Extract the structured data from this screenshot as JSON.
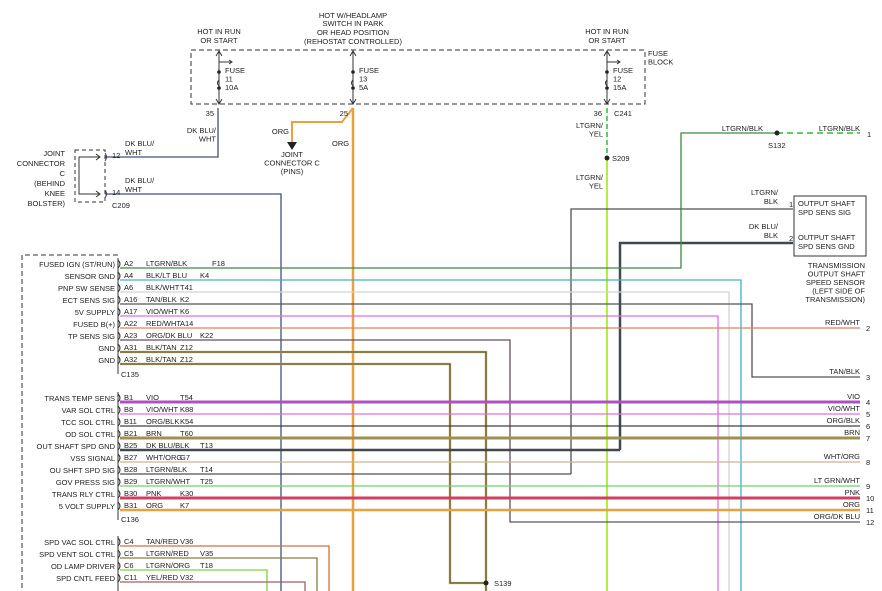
{
  "fuse_block": {
    "label": [
      "FUSE",
      "BLOCK"
    ],
    "connector": "C241",
    "fuses": [
      {
        "feed": [
          "HOT IN RUN",
          "OR START"
        ],
        "label": [
          "FUSE",
          "11",
          "10A"
        ],
        "cavity": "35"
      },
      {
        "feed": [
          "HOT W/HEADLAMP",
          "SWITCH IN PARK",
          "OR HEAD POSITION",
          "(REHOSTAT CONTROLLED)"
        ],
        "label": [
          "FUSE",
          "13",
          "5A"
        ],
        "cavity": "25"
      },
      {
        "feed": [
          "HOT IN RUN",
          "OR START"
        ],
        "label": [
          "FUSE",
          "12",
          "15A"
        ],
        "cavity": "36"
      }
    ]
  },
  "wire_labels": {
    "dkblu_wht_fuse": [
      "DK BLU/",
      "WHT"
    ],
    "org_branch": "ORG",
    "org_main": "ORG",
    "ltgrn_yel_upper": [
      "LTGRN/",
      "YEL"
    ],
    "ltgrn_yel_lower": [
      "LTGRN/",
      "YEL"
    ],
    "s209": "S209",
    "s132": "S132",
    "s139": "S139",
    "ltgrn_blk_left": "LTGRN/BLK",
    "ltgrn_blk_right": "LTGRN/BLK",
    "ltgrn_blk_right_pin": "1"
  },
  "joint_connector_c_pins": [
    "JOINT",
    "CONNECTOR C",
    "(PINS)"
  ],
  "joint_connector_c": {
    "label": [
      "JOINT",
      "CONNECTOR",
      "C",
      "(BEHIND",
      "KNEE",
      "BOLSTER)"
    ],
    "connector": "C209",
    "pins": [
      {
        "cavity": "12",
        "wire": [
          "DK BLU/",
          "WHT"
        ]
      },
      {
        "cavity": "14",
        "wire": [
          "DK BLU/",
          "WHT"
        ]
      }
    ]
  },
  "output_shaft_sensor": {
    "title": [
      "TRANSMISSION",
      "OUTPUT SHAFT",
      "SPEED SENSOR",
      "(LEFT SIDE OF",
      "TRANSMISSION)"
    ],
    "pins": [
      {
        "num": "1",
        "wire": [
          "LTGRN/",
          "BLK"
        ],
        "func": [
          "OUTPUT SHAFT",
          "SPD SENS SIG"
        ]
      },
      {
        "num": "2",
        "wire": [
          "DK BLU/",
          "BLK"
        ],
        "func": [
          "OUTPUT SHAFT",
          "SPD SENS GND"
        ]
      }
    ]
  },
  "pcm": {
    "connectors": [
      {
        "name": "C135",
        "pins": [
          {
            "func": "FUSED IGN (ST/RUN)",
            "cavity": "A2",
            "wire": "LTGRN/BLK",
            "circuit": "F18",
            "color": "#3d8a3d"
          },
          {
            "func": "SENSOR GND",
            "cavity": "A4",
            "wire": "BLK/LT BLU",
            "circuit": "K4",
            "color": "#40b0c8"
          },
          {
            "func": "PNP SW SENSE",
            "cavity": "A6",
            "wire": "BLK/WHT",
            "circuit": "T41",
            "color": "#d4d4d4"
          },
          {
            "func": "ECT SENS SIG",
            "cavity": "A16",
            "wire": "TAN/BLK",
            "circuit": "K2",
            "color": "#555555"
          },
          {
            "func": "5V SUPPLY",
            "cavity": "A17",
            "wire": "VIO/WHT",
            "circuit": "K6",
            "color": "#e070e0"
          },
          {
            "func": "FUSED B(+)",
            "cavity": "A22",
            "wire": "RED/WHT",
            "circuit": "A14",
            "color": "#e08060"
          },
          {
            "func": "TP SENS SIG",
            "cavity": "A23",
            "wire": "ORG/DK BLU",
            "circuit": "K22",
            "color": "#605060"
          },
          {
            "func": "GND",
            "cavity": "A31",
            "wire": "BLK/TAN",
            "circuit": "Z12",
            "color": "#5a5030"
          },
          {
            "func": "GND",
            "cavity": "A32",
            "wire": "BLK/TAN",
            "circuit": "Z12",
            "color": "#5a5030"
          }
        ]
      },
      {
        "name": "C136",
        "pins": [
          {
            "func": "TRANS TEMP SENS",
            "cavity": "B1",
            "wire": "VIO",
            "circuit": "T54",
            "color": "#b050c0"
          },
          {
            "func": "VAR SOL CTRL",
            "cavity": "B8",
            "wire": "VIO/WHT",
            "circuit": "K88",
            "color": "#e070e0"
          },
          {
            "func": "TCC SOL CTRL",
            "cavity": "B11",
            "wire": "ORG/BLK",
            "circuit": "K54",
            "color": "#404040"
          },
          {
            "func": "OD SOL CTRL",
            "cavity": "B21",
            "wire": "BRN",
            "circuit": "T60",
            "color": "#a09050"
          },
          {
            "func": "OUT SHAFT SPD GND",
            "cavity": "B25",
            "wire": "DK BLU/BLK",
            "circuit": "T13",
            "color": "#404850"
          },
          {
            "func": "VSS SIGNAL",
            "cavity": "B27",
            "wire": "WHT/ORG",
            "circuit": "G7",
            "color": "#c8b890"
          },
          {
            "func": "OU SHFT SPD SIG",
            "cavity": "B28",
            "wire": "LTGRN/BLK",
            "circuit": "T14",
            "color": "#505050"
          },
          {
            "func": "GOV PRESS SIG",
            "cavity": "B29",
            "wire": "LTGRN/WHT",
            "circuit": "T25",
            "color": "#70d070"
          },
          {
            "func": "TRANS RLY CTRL",
            "cavity": "B30",
            "wire": "PNK",
            "circuit": "K30",
            "color": "#d04060"
          },
          {
            "func": "5 VOLT SUPPLY",
            "cavity": "B31",
            "wire": "ORG",
            "circuit": "K7",
            "color": "#e8a040"
          }
        ]
      },
      {
        "name": "",
        "pins": [
          {
            "func": "SPD VAC SOL CTRL",
            "cavity": "C4",
            "wire": "TAN/RED",
            "circuit": "V36",
            "color": "#d07040"
          },
          {
            "func": "SPD VENT SOL CTRL",
            "cavity": "C5",
            "wire": "LTGRN/RED",
            "circuit": "V35",
            "color": "#808040"
          },
          {
            "func": "OD LAMP DRIVER",
            "cavity": "C6",
            "wire": "LTGRN/ORG",
            "circuit": "T18",
            "color": "#80d040"
          },
          {
            "func": "SPD CNTL FEED",
            "cavity": "C11",
            "wire": "YEL/RED",
            "circuit": "V32",
            "color": "#a06060"
          }
        ]
      }
    ]
  },
  "trans_connector_pins": [
    {
      "num": "2",
      "wire": "RED/WHT"
    },
    {
      "num": "3",
      "wire": "TAN/BLK"
    },
    {
      "num": "4",
      "wire": "VIO"
    },
    {
      "num": "5",
      "wire": "VIO/WHT"
    },
    {
      "num": "6",
      "wire": "ORG/BLK"
    },
    {
      "num": "7",
      "wire": "BRN"
    },
    {
      "num": "8",
      "wire": "WHT/ORG"
    },
    {
      "num": "9",
      "wire": "LT GRN/WHT"
    },
    {
      "num": "10",
      "wire": "PNK"
    },
    {
      "num": "11",
      "wire": "ORG"
    },
    {
      "num": "12",
      "wire": "ORG/DK BLU"
    }
  ],
  "colors": {
    "dkblu_wht": "#405080",
    "org": "#e8a040",
    "ltgrn_yel": "#b0f040",
    "ltgrn_dashed": "#60d060"
  }
}
